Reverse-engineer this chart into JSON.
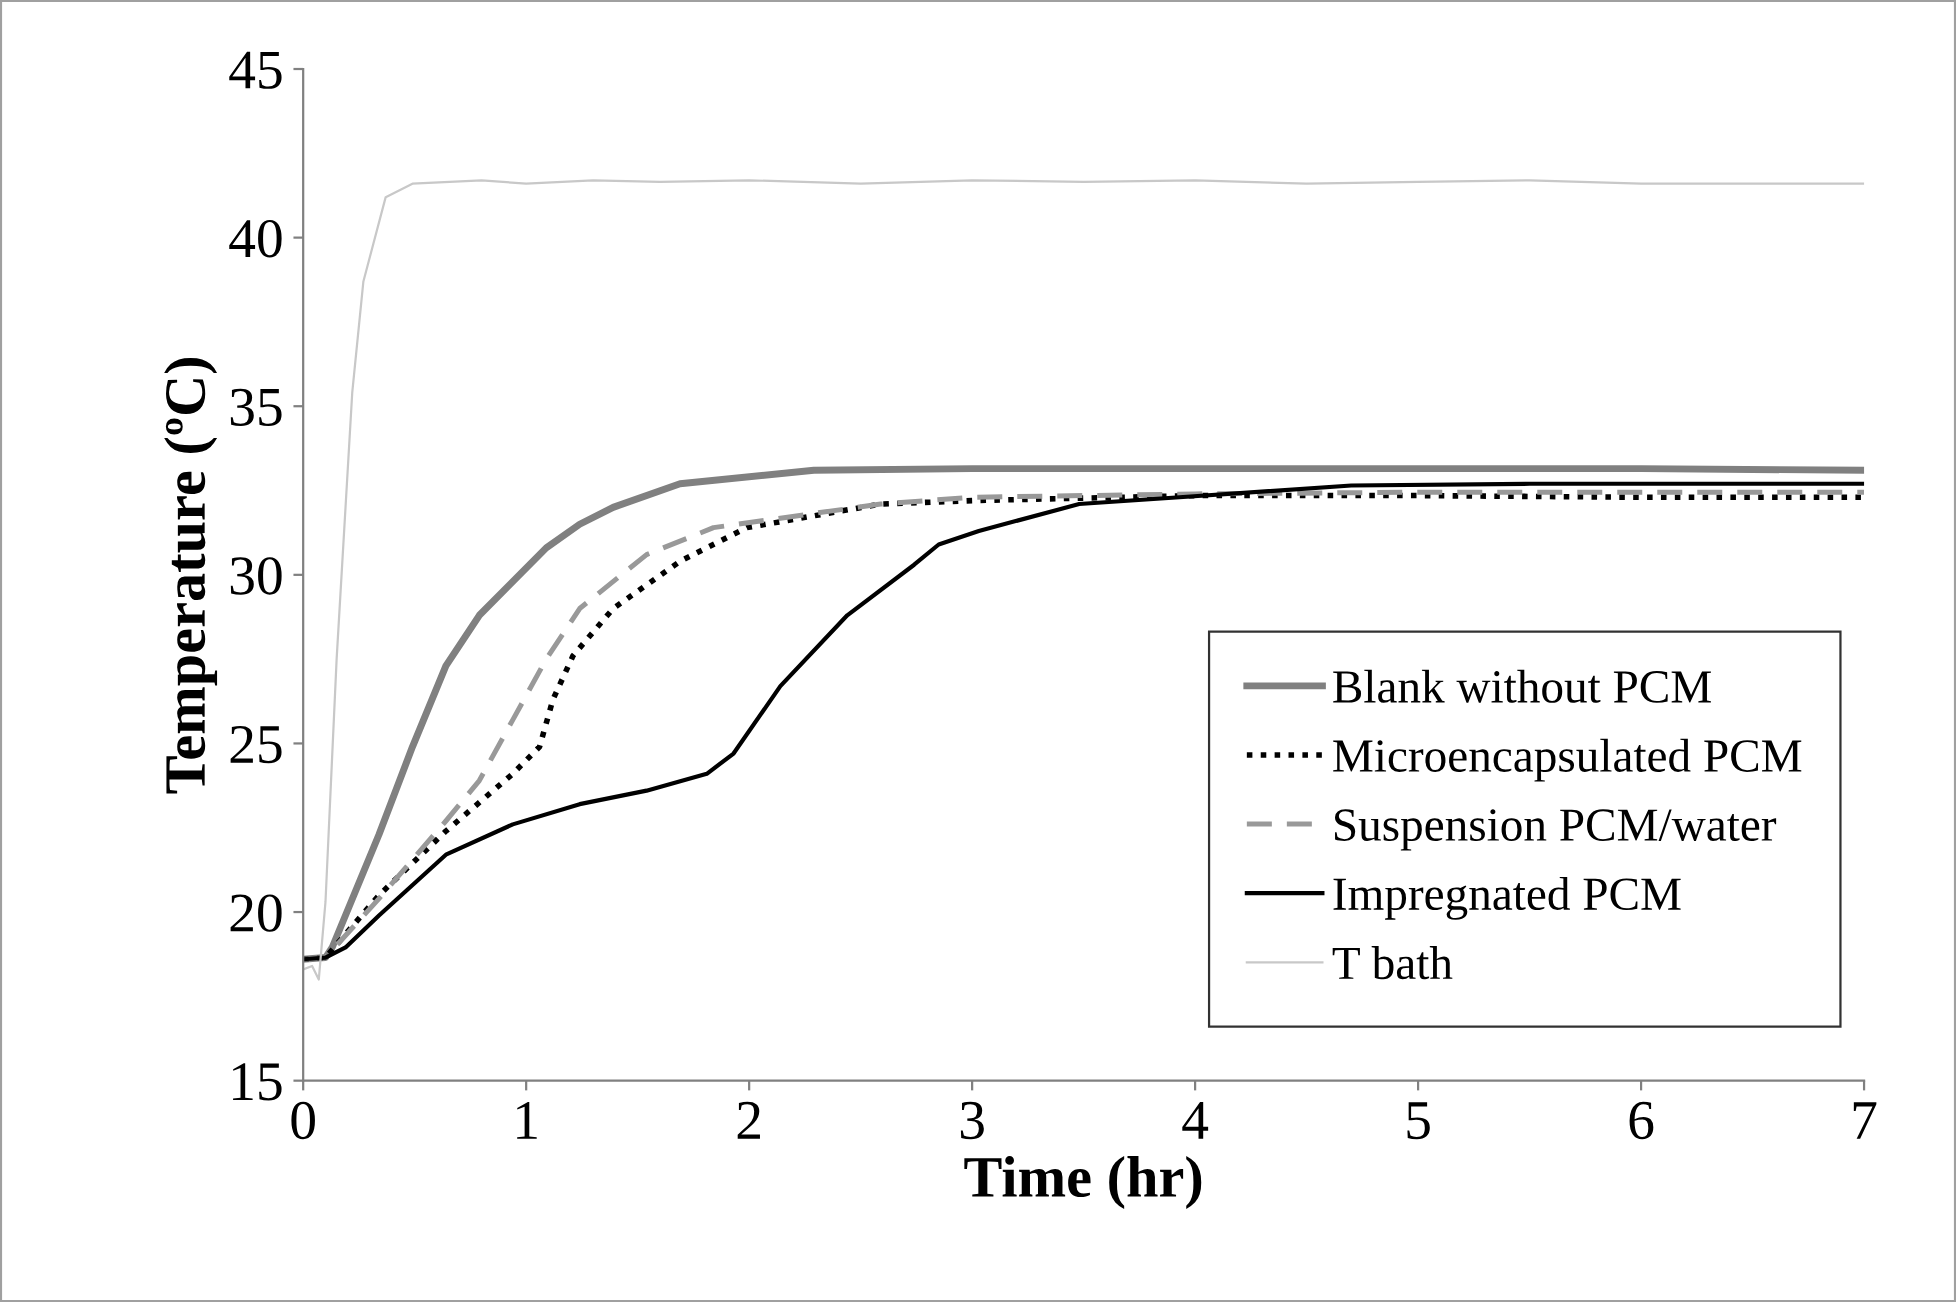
{
  "chart_data": {
    "type": "line",
    "xlabel": "Time (hr)",
    "ylabel": "Temperature (ºC)",
    "xlim": [
      0,
      7
    ],
    "ylim": [
      15,
      45
    ],
    "xticks": [
      0,
      1,
      2,
      3,
      4,
      5,
      6,
      7
    ],
    "yticks": [
      15,
      20,
      25,
      30,
      35,
      40,
      45
    ],
    "grid": false,
    "legend": "bottom right",
    "marker": "none",
    "series": [
      {
        "name": "Blank without PCM",
        "color": "#808080",
        "line_style": "solid",
        "x": [
          0,
          0.1,
          0.13,
          0.34,
          0.49,
          0.64,
          0.79,
          1.09,
          1.24,
          1.39,
          1.69,
          2.29,
          3,
          4,
          5,
          6,
          7
        ],
        "values": [
          18.6,
          18.65,
          18.95,
          22.3,
          24.9,
          27.3,
          28.8,
          30.8,
          31.5,
          32.0,
          32.7,
          33.1,
          33.15,
          33.15,
          33.15,
          33.15,
          33.1
        ]
      },
      {
        "name": "Microencapsulated PCM",
        "color": "#000000",
        "line_style": "dotted",
        "x": [
          0,
          0.1,
          0.34,
          0.64,
          0.94,
          1.06,
          1.12,
          1.21,
          1.39,
          1.69,
          1.99,
          2.59,
          3,
          4,
          5,
          6,
          7
        ],
        "values": [
          18.6,
          18.65,
          20.5,
          22.4,
          24.1,
          24.9,
          26.3,
          27.6,
          29.0,
          30.4,
          31.4,
          32.1,
          32.2,
          32.35,
          32.35,
          32.3,
          32.3
        ]
      },
      {
        "name": "Suspension PCM/water",
        "color": "#999999",
        "line_style": "dashed",
        "x": [
          0,
          0.1,
          0.34,
          0.64,
          0.79,
          0.94,
          1.09,
          1.24,
          1.54,
          1.84,
          2.59,
          3,
          4,
          5,
          6,
          7
        ],
        "values": [
          18.6,
          18.65,
          20.4,
          22.7,
          23.9,
          25.7,
          27.5,
          29.0,
          30.6,
          31.4,
          32.1,
          32.3,
          32.4,
          32.45,
          32.45,
          32.45
        ]
      },
      {
        "name": "Impregnated PCM",
        "color": "#000000",
        "line_style": "solid",
        "x": [
          0,
          0.1,
          0.19,
          0.34,
          0.64,
          0.94,
          1.24,
          1.54,
          1.81,
          1.93,
          2.14,
          2.44,
          2.74,
          2.85,
          3.03,
          3.48,
          3.93,
          4.7,
          5.5,
          6.3,
          7
        ],
        "values": [
          18.6,
          18.65,
          18.95,
          19.9,
          21.7,
          22.6,
          23.2,
          23.6,
          24.1,
          24.7,
          26.7,
          28.8,
          30.3,
          30.9,
          31.3,
          32.1,
          32.3,
          32.65,
          32.7,
          32.7,
          32.7
        ]
      },
      {
        "name": "T bath",
        "color": "#c8c8c8",
        "line_style": "solid",
        "x": [
          0,
          0.04,
          0.07,
          0.1,
          0.15,
          0.22,
          0.27,
          0.37,
          0.49,
          0.8,
          1.0,
          1.3,
          1.6,
          2.0,
          2.5,
          3.0,
          3.5,
          4.0,
          4.5,
          5.0,
          5.5,
          6.0,
          6.5,
          7
        ],
        "values": [
          18.3,
          18.4,
          18.0,
          20.3,
          27.5,
          35.4,
          38.7,
          41.2,
          41.6,
          41.7,
          41.6,
          41.7,
          41.65,
          41.7,
          41.6,
          41.7,
          41.65,
          41.7,
          41.6,
          41.65,
          41.7,
          41.6,
          41.6,
          41.6
        ]
      }
    ]
  }
}
